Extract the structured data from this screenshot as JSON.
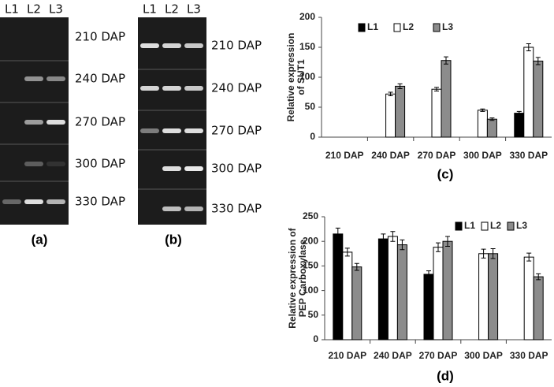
{
  "gels": [
    {
      "lanes": [
        "L1",
        "L2",
        "L3"
      ],
      "rows": [
        "210 DAP",
        "240 DAP",
        "270 DAP",
        "300 DAP",
        "330 DAP"
      ],
      "caption": "(a)"
    },
    {
      "lanes": [
        "L1",
        "L2",
        "L3"
      ],
      "rows": [
        "210 DAP",
        "240 DAP",
        "270 DAP",
        "300 DAP",
        "330 DAP"
      ],
      "caption": "(b)"
    }
  ],
  "chart_data": [
    {
      "type": "bar",
      "caption": "(c)",
      "ylabel": [
        "Relative expression",
        "of SUT1"
      ],
      "categories": [
        "210 DAP",
        "240 DAP",
        "270 DAP",
        "300 DAP",
        "330 DAP"
      ],
      "series": [
        {
          "name": "L1",
          "color": "#000000",
          "values": [
            0,
            0,
            0,
            0,
            40
          ],
          "errors": [
            null,
            null,
            null,
            null,
            3
          ]
        },
        {
          "name": "L2",
          "color": "#ffffff",
          "values": [
            0,
            72,
            80,
            45,
            150
          ],
          "errors": [
            null,
            3,
            3,
            2,
            6
          ]
        },
        {
          "name": "L3",
          "color": "#8c8c8c",
          "values": [
            0,
            85,
            128,
            30,
            127
          ],
          "errors": [
            null,
            4,
            6,
            2,
            6
          ]
        }
      ],
      "ylim": [
        0,
        200
      ],
      "yticks": [
        0,
        50,
        100,
        150,
        200
      ],
      "legend": "top-left"
    },
    {
      "type": "bar",
      "caption": "(d)",
      "ylabel": [
        "Relative expression of",
        "PEP Carboxylase"
      ],
      "categories": [
        "210 DAP",
        "240 DAP",
        "270 DAP",
        "300 DAP",
        "330 DAP"
      ],
      "series": [
        {
          "name": "L1",
          "color": "#000000",
          "values": [
            215,
            205,
            133,
            0,
            0
          ],
          "errors": [
            12,
            10,
            7,
            null,
            null
          ]
        },
        {
          "name": "L2",
          "color": "#ffffff",
          "values": [
            178,
            210,
            188,
            175,
            168
          ],
          "errors": [
            8,
            10,
            9,
            9,
            8
          ]
        },
        {
          "name": "L3",
          "color": "#8c8c8c",
          "values": [
            148,
            193,
            200,
            175,
            128
          ],
          "errors": [
            7,
            10,
            10,
            10,
            6
          ]
        }
      ],
      "ylim": [
        0,
        250
      ],
      "yticks": [
        0,
        50,
        100,
        150,
        200,
        250
      ],
      "legend": "top-right"
    }
  ]
}
